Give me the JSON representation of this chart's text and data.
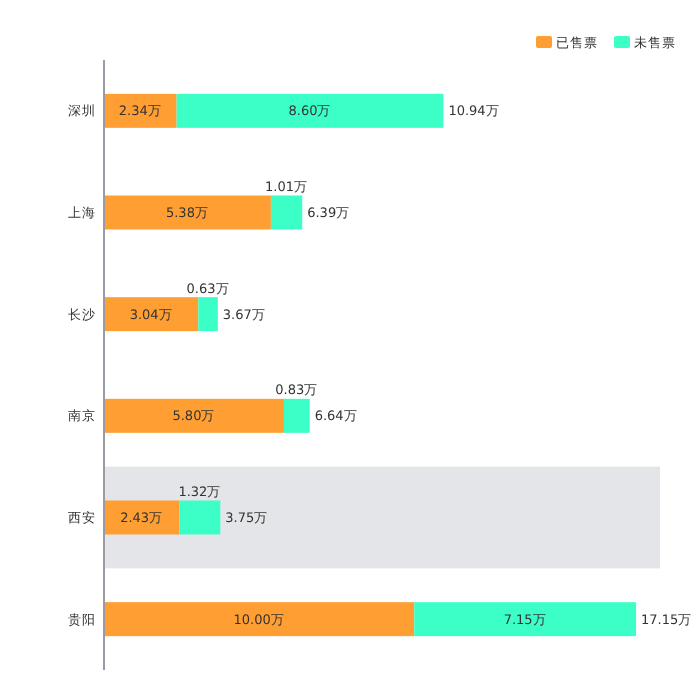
{
  "chart_data": {
    "type": "bar",
    "orientation": "horizontal",
    "stacked": true,
    "legend": "top right",
    "data_labels": true,
    "categories": [
      "深圳",
      "上海",
      "长沙",
      "南京",
      "西安",
      "贵阳"
    ],
    "series": [
      {
        "name": "已售票",
        "color": "#ff9f33",
        "values": [
          2.34,
          5.38,
          3.04,
          5.8,
          2.43,
          10.0
        ],
        "value_labels": [
          "2.34万",
          "5.38万",
          "3.04万",
          "5.80万",
          "2.43万",
          "10.00万"
        ]
      },
      {
        "name": "未售票",
        "color": "#3bffc6",
        "values": [
          8.6,
          1.01,
          0.63,
          0.83,
          1.32,
          7.15
        ],
        "value_labels": [
          "8.60万",
          "1.01万",
          "0.63万",
          "0.83万",
          "1.32万",
          "7.15万"
        ]
      }
    ],
    "totals": [
      "10.94万",
      "6.39万",
      "3.67万",
      "6.64万",
      "3.75万",
      "17.15万"
    ],
    "bands": [
      {
        "axis": "y",
        "from": "西安",
        "to": "西安",
        "color": "#e4e5e8"
      }
    ]
  }
}
